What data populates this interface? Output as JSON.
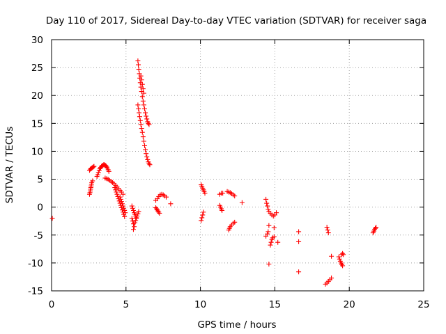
{
  "chart_data": {
    "type": "scatter",
    "title": "Day 110 of 2017, Sidereal Day-to-day VTEC variation (SDTVAR) for receiver saga",
    "xlabel": "GPS time / hours",
    "ylabel": "SDTVAR / TECUs",
    "xlim": [
      0,
      25
    ],
    "ylim": [
      -15,
      30
    ],
    "xticks": [
      0,
      5,
      10,
      15,
      20,
      25
    ],
    "yticks": [
      -15,
      -10,
      -5,
      0,
      5,
      10,
      15,
      20,
      25,
      30
    ],
    "grid": true,
    "marker": "+",
    "color": "#ff0000",
    "series": [
      {
        "name": "SDTVAR",
        "points": [
          [
            0.05,
            -2.0
          ],
          [
            2.55,
            6.6
          ],
          [
            2.6,
            6.8
          ],
          [
            2.65,
            6.9
          ],
          [
            2.7,
            7.0
          ],
          [
            2.75,
            7.1
          ],
          [
            2.8,
            7.2
          ],
          [
            2.85,
            7.3
          ],
          [
            2.55,
            2.3
          ],
          [
            2.58,
            2.6
          ],
          [
            2.6,
            2.9
          ],
          [
            2.62,
            3.2
          ],
          [
            2.64,
            3.5
          ],
          [
            2.66,
            3.8
          ],
          [
            2.68,
            4.1
          ],
          [
            2.7,
            4.4
          ],
          [
            2.75,
            4.7
          ],
          [
            3.05,
            5.5
          ],
          [
            3.1,
            5.8
          ],
          [
            3.15,
            6.2
          ],
          [
            3.2,
            6.6
          ],
          [
            3.25,
            6.9
          ],
          [
            3.3,
            7.1
          ],
          [
            3.35,
            7.3
          ],
          [
            3.4,
            7.4
          ],
          [
            3.45,
            7.5
          ],
          [
            3.5,
            7.6
          ],
          [
            3.55,
            7.6
          ],
          [
            3.6,
            7.5
          ],
          [
            3.65,
            7.4
          ],
          [
            3.7,
            7.2
          ],
          [
            3.75,
            7.0
          ],
          [
            3.8,
            6.7
          ],
          [
            3.85,
            6.4
          ],
          [
            3.6,
            5.2
          ],
          [
            3.7,
            5.1
          ],
          [
            3.8,
            5.0
          ],
          [
            3.9,
            4.8
          ],
          [
            4.0,
            4.6
          ],
          [
            4.1,
            4.4
          ],
          [
            4.2,
            4.2
          ],
          [
            4.3,
            3.9
          ],
          [
            4.4,
            3.6
          ],
          [
            4.5,
            3.3
          ],
          [
            4.6,
            3.0
          ],
          [
            4.7,
            2.7
          ],
          [
            4.8,
            2.3
          ],
          [
            4.25,
            3.5
          ],
          [
            4.3,
            3.1
          ],
          [
            4.35,
            2.7
          ],
          [
            4.4,
            2.3
          ],
          [
            4.45,
            1.9
          ],
          [
            4.5,
            1.5
          ],
          [
            4.55,
            1.1
          ],
          [
            4.6,
            0.7
          ],
          [
            4.65,
            0.3
          ],
          [
            4.7,
            -0.1
          ],
          [
            4.75,
            -0.5
          ],
          [
            4.8,
            -0.9
          ],
          [
            4.85,
            -1.3
          ],
          [
            4.9,
            -1.7
          ],
          [
            4.6,
            1.8
          ],
          [
            4.65,
            1.4
          ],
          [
            4.7,
            1.0
          ],
          [
            4.75,
            0.6
          ],
          [
            4.8,
            0.2
          ],
          [
            4.85,
            -0.2
          ],
          [
            4.9,
            -0.6
          ],
          [
            4.95,
            -1.0
          ],
          [
            5.4,
            0.2
          ],
          [
            5.45,
            -0.2
          ],
          [
            5.5,
            -0.6
          ],
          [
            5.55,
            -1.0
          ],
          [
            5.6,
            -1.3
          ],
          [
            5.65,
            -1.6
          ],
          [
            5.7,
            -1.9
          ],
          [
            5.4,
            -2.0
          ],
          [
            5.45,
            -2.5
          ],
          [
            5.5,
            -3.0
          ],
          [
            5.55,
            -3.5
          ],
          [
            5.5,
            -4.0
          ],
          [
            5.6,
            -2.8
          ],
          [
            5.65,
            -2.4
          ],
          [
            5.7,
            -2.0
          ],
          [
            5.75,
            -1.6
          ],
          [
            5.8,
            -1.2
          ],
          [
            5.85,
            -0.8
          ],
          [
            5.8,
            26.2
          ],
          [
            5.83,
            25.5
          ],
          [
            5.86,
            24.7
          ],
          [
            5.9,
            23.9
          ],
          [
            5.93,
            23.1
          ],
          [
            5.96,
            22.3
          ],
          [
            6.0,
            21.5
          ],
          [
            6.05,
            20.7
          ],
          [
            6.1,
            19.8
          ],
          [
            6.15,
            19.0
          ],
          [
            6.2,
            18.3
          ],
          [
            6.25,
            17.6
          ],
          [
            6.3,
            16.9
          ],
          [
            6.35,
            16.3
          ],
          [
            6.4,
            15.8
          ],
          [
            6.45,
            15.3
          ],
          [
            6.5,
            15.0
          ],
          [
            6.55,
            14.8
          ],
          [
            6.0,
            23.5
          ],
          [
            6.05,
            22.8
          ],
          [
            6.1,
            22.0
          ],
          [
            6.15,
            21.2
          ],
          [
            6.2,
            20.4
          ],
          [
            5.8,
            18.3
          ],
          [
            5.84,
            17.6
          ],
          [
            5.88,
            16.9
          ],
          [
            5.92,
            16.2
          ],
          [
            5.96,
            15.5
          ],
          [
            6.0,
            14.8
          ],
          [
            6.05,
            14.1
          ],
          [
            6.1,
            13.4
          ],
          [
            6.15,
            12.6
          ],
          [
            6.2,
            11.8
          ],
          [
            6.25,
            11.0
          ],
          [
            6.3,
            10.3
          ],
          [
            6.35,
            9.6
          ],
          [
            6.4,
            9.0
          ],
          [
            6.45,
            8.5
          ],
          [
            6.5,
            8.1
          ],
          [
            6.55,
            7.8
          ],
          [
            6.6,
            7.6
          ],
          [
            7.0,
            1.2
          ],
          [
            7.1,
            1.5
          ],
          [
            7.2,
            1.9
          ],
          [
            7.3,
            2.2
          ],
          [
            7.4,
            2.3
          ],
          [
            7.5,
            2.2
          ],
          [
            7.6,
            2.0
          ],
          [
            7.7,
            1.8
          ],
          [
            7.0,
            -0.1
          ],
          [
            7.05,
            -0.3
          ],
          [
            7.1,
            -0.5
          ],
          [
            7.15,
            -0.7
          ],
          [
            7.2,
            -0.9
          ],
          [
            7.25,
            -1.1
          ],
          [
            8.0,
            0.6
          ],
          [
            10.05,
            4.0
          ],
          [
            10.1,
            3.7
          ],
          [
            10.15,
            3.4
          ],
          [
            10.2,
            3.1
          ],
          [
            10.25,
            2.8
          ],
          [
            10.3,
            2.5
          ],
          [
            10.05,
            -2.4
          ],
          [
            10.1,
            -1.9
          ],
          [
            10.15,
            -1.4
          ],
          [
            10.2,
            -0.9
          ],
          [
            11.3,
            2.3
          ],
          [
            11.4,
            2.5
          ],
          [
            11.5,
            2.5
          ],
          [
            11.3,
            0.3
          ],
          [
            11.35,
            0.0
          ],
          [
            11.4,
            -0.3
          ],
          [
            11.45,
            -0.6
          ],
          [
            11.8,
            2.8
          ],
          [
            11.9,
            2.7
          ],
          [
            12.0,
            2.6
          ],
          [
            12.1,
            2.4
          ],
          [
            12.2,
            2.2
          ],
          [
            12.3,
            2.0
          ],
          [
            11.9,
            -4.1
          ],
          [
            11.95,
            -3.8
          ],
          [
            12.0,
            -3.5
          ],
          [
            12.1,
            -3.2
          ],
          [
            12.2,
            -2.9
          ],
          [
            12.3,
            -2.7
          ],
          [
            12.8,
            0.8
          ],
          [
            14.4,
            1.4
          ],
          [
            14.45,
            0.7
          ],
          [
            14.5,
            0.2
          ],
          [
            14.55,
            -0.4
          ],
          [
            14.6,
            -0.8
          ],
          [
            14.7,
            -1.1
          ],
          [
            14.8,
            -1.4
          ],
          [
            14.9,
            -1.6
          ],
          [
            15.0,
            -1.4
          ],
          [
            15.1,
            -1.0
          ],
          [
            14.4,
            -5.2
          ],
          [
            14.5,
            -4.8
          ],
          [
            14.55,
            -4.4
          ],
          [
            14.6,
            -3.3
          ],
          [
            14.7,
            -6.8
          ],
          [
            14.75,
            -6.3
          ],
          [
            14.8,
            -5.8
          ],
          [
            14.85,
            -5.5
          ],
          [
            14.95,
            -5.3
          ],
          [
            14.95,
            -3.7
          ],
          [
            15.2,
            -6.3
          ],
          [
            14.6,
            -10.2
          ],
          [
            16.6,
            -4.4
          ],
          [
            16.6,
            -6.2
          ],
          [
            16.6,
            -11.6
          ],
          [
            18.5,
            -3.6
          ],
          [
            18.55,
            -4.1
          ],
          [
            18.6,
            -4.6
          ],
          [
            18.4,
            -13.8
          ],
          [
            18.5,
            -13.6
          ],
          [
            18.6,
            -13.3
          ],
          [
            18.7,
            -13.0
          ],
          [
            18.8,
            -12.7
          ],
          [
            18.8,
            -8.8
          ],
          [
            19.3,
            -8.9
          ],
          [
            19.35,
            -9.3
          ],
          [
            19.4,
            -9.7
          ],
          [
            19.45,
            -10.0
          ],
          [
            19.5,
            -10.3
          ],
          [
            19.55,
            -10.5
          ],
          [
            19.5,
            -8.5
          ],
          [
            19.55,
            -8.3
          ],
          [
            19.6,
            -8.5
          ],
          [
            21.6,
            -4.6
          ],
          [
            21.65,
            -4.3
          ],
          [
            21.7,
            -4.0
          ],
          [
            21.75,
            -3.8
          ],
          [
            21.8,
            -3.6
          ]
        ]
      }
    ]
  }
}
